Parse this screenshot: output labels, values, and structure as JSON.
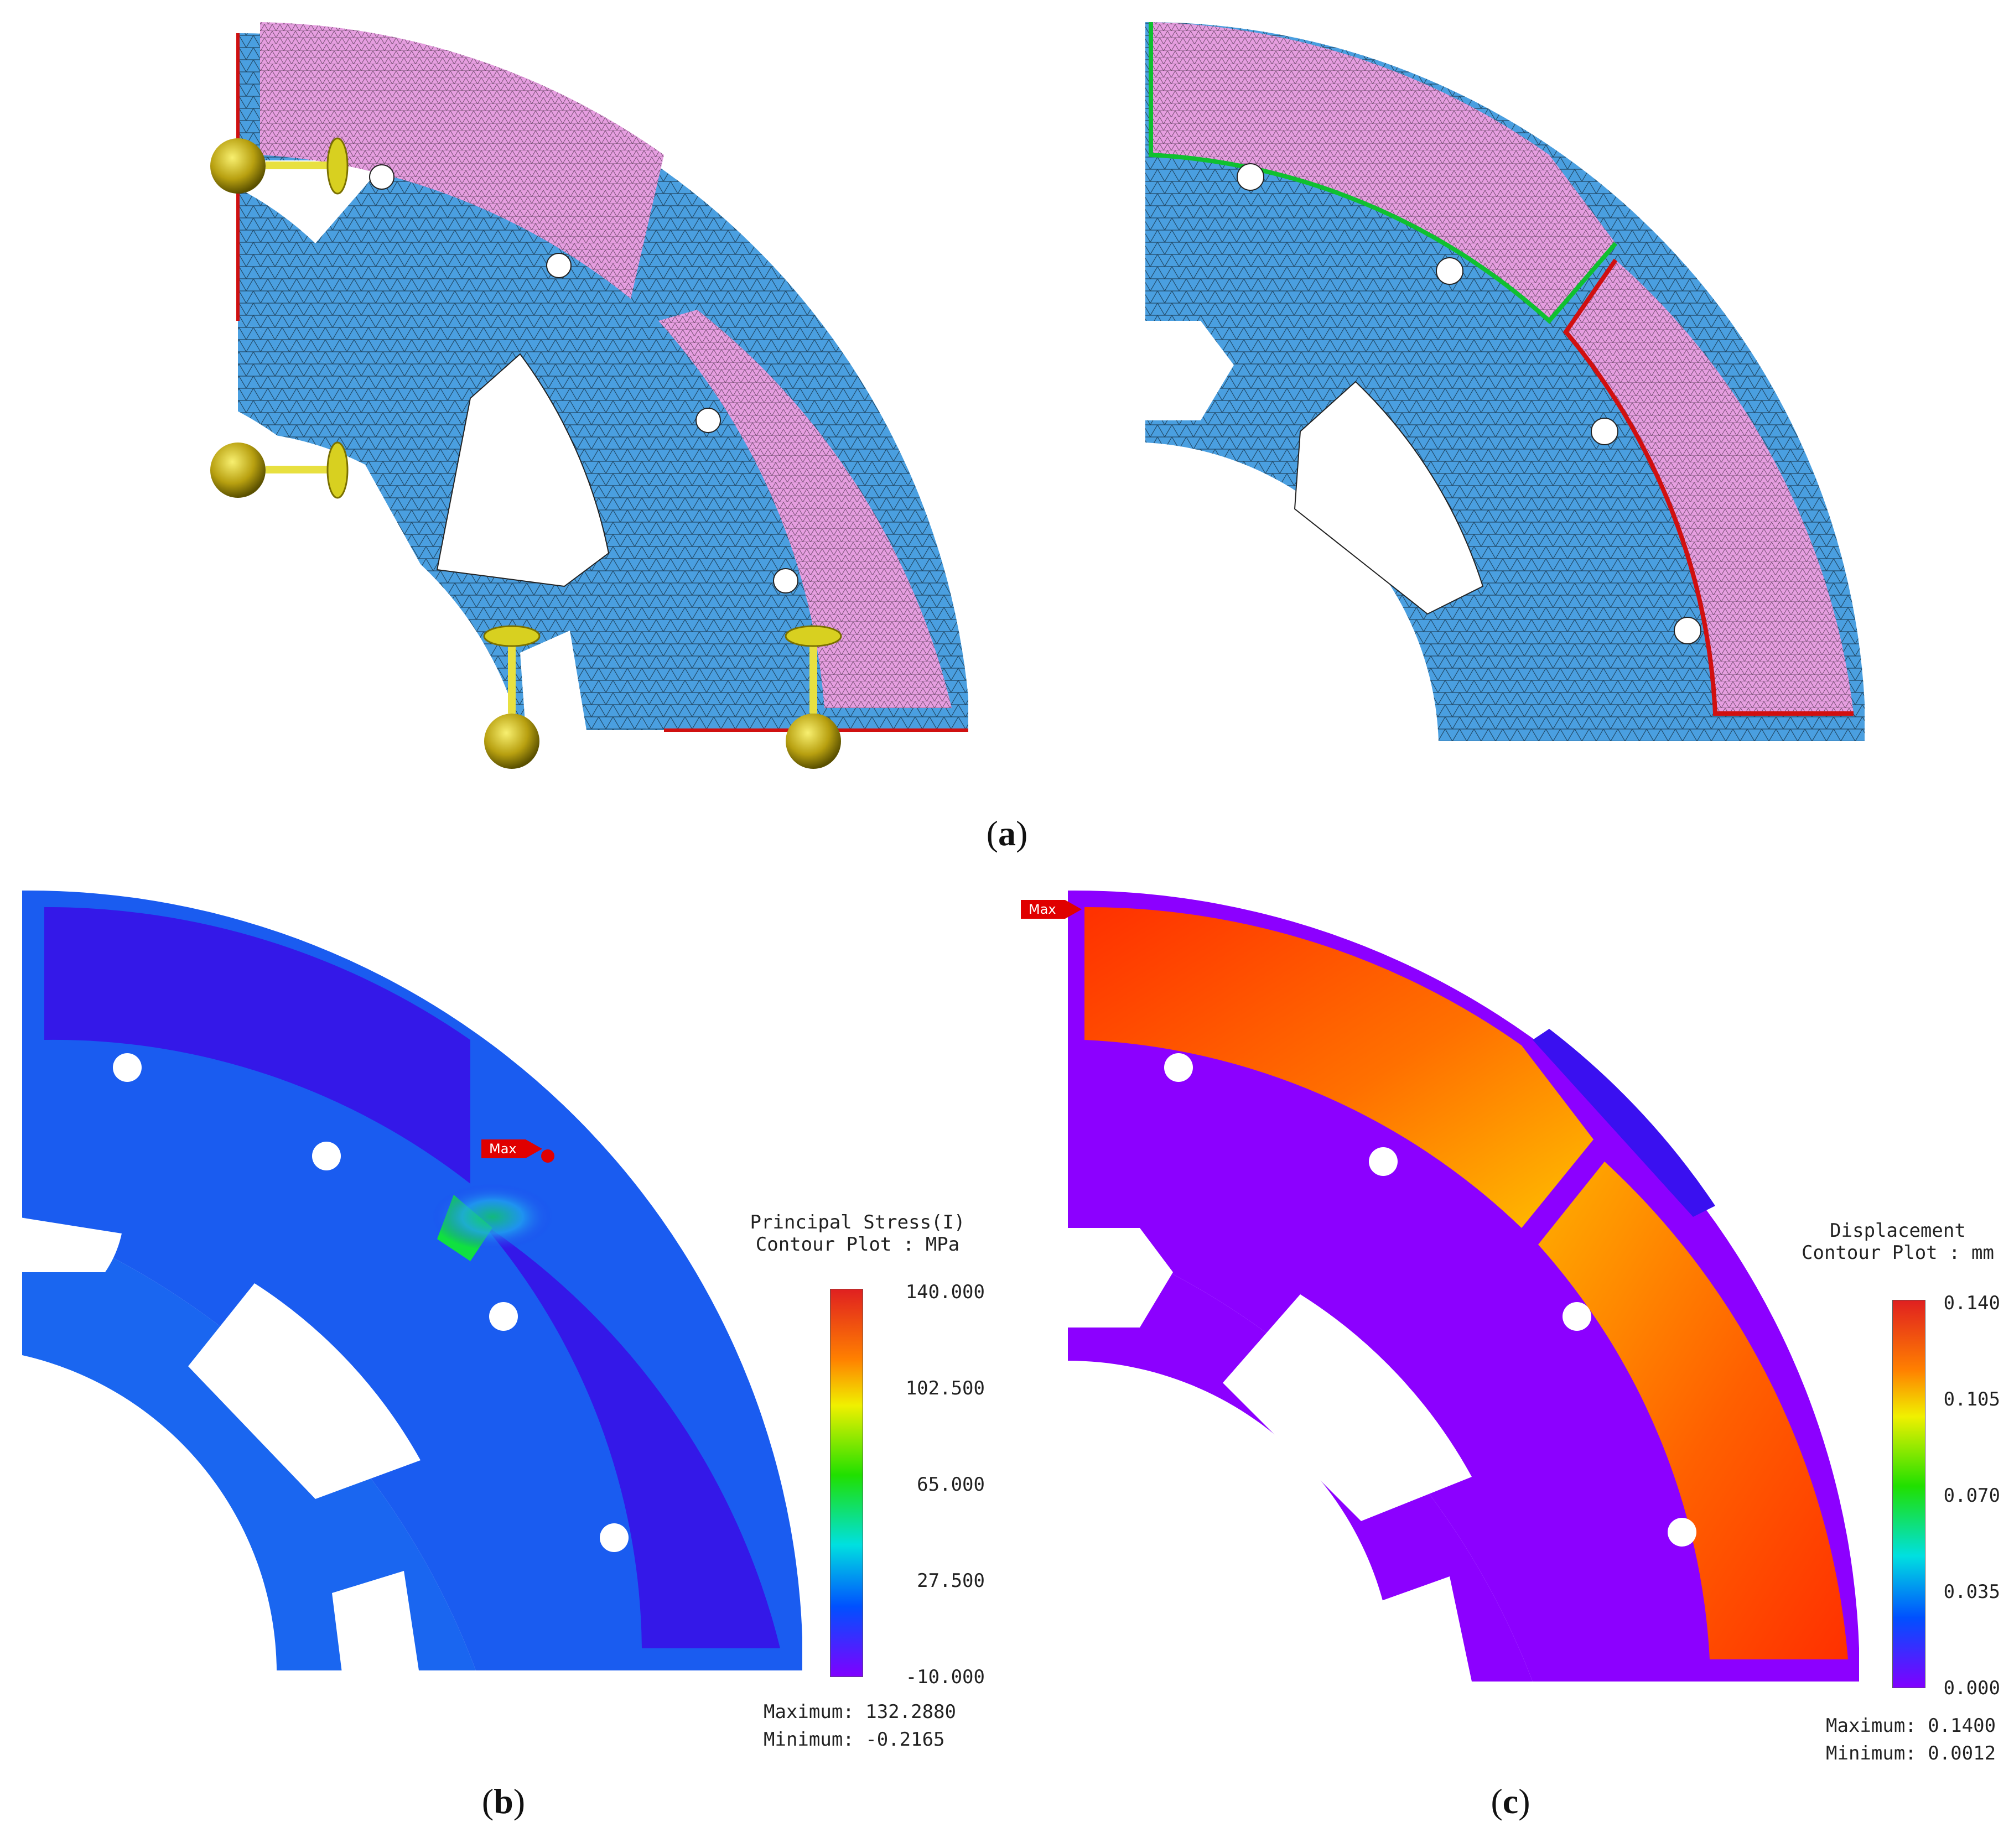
{
  "captions": {
    "a": "a",
    "b": "b",
    "c": "c"
  },
  "panel_b": {
    "legend_title_line1": "Principal Stress(I)",
    "legend_title_line2": "Contour Plot : MPa",
    "ticks": [
      "140.000",
      "102.500",
      "65.000",
      "27.500",
      "-10.000"
    ],
    "maximum_label": "Maximum: 132.2880",
    "minimum_label": "Minimum: -0.2165",
    "max_marker": "Max"
  },
  "panel_c": {
    "legend_title_line1": "Displacement",
    "legend_title_line2": "Contour Plot : mm",
    "ticks": [
      "0.140",
      "0.105",
      "0.070",
      "0.035",
      "0.000"
    ],
    "maximum_label": "Maximum: 0.1400",
    "minimum_label": "Minimum: 0.0012",
    "max_marker": "Max"
  },
  "colors": {
    "mesh_blue": "#4a9fe0",
    "mesh_pink": "#e69ee0",
    "constraint_yellow": "#d8d020",
    "contact_green": "#10c030",
    "contact_red": "#d01010",
    "stress_blue": "#2240f0",
    "disp_purple": "#8c00ff",
    "disp_orange": "#ff5000"
  }
}
